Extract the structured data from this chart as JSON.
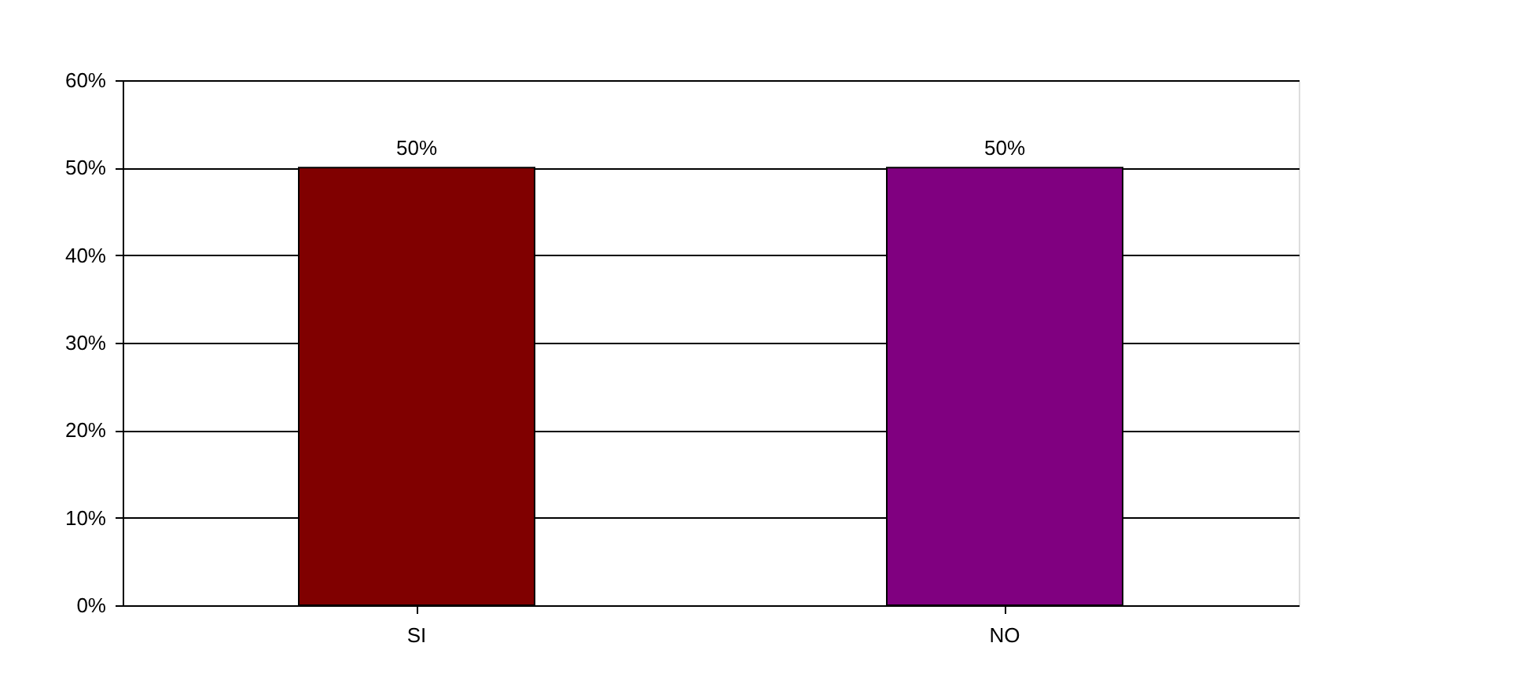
{
  "chart_data": {
    "type": "bar",
    "categories": [
      "SI",
      "NO"
    ],
    "values": [
      50,
      50
    ],
    "colors": [
      "#800000",
      "#800080"
    ],
    "value_labels": [
      "50%",
      "50%"
    ],
    "ylim": [
      0,
      60
    ],
    "yticks": [
      {
        "value": 0,
        "label": "0%"
      },
      {
        "value": 10,
        "label": "10%"
      },
      {
        "value": 20,
        "label": "20%"
      },
      {
        "value": 30,
        "label": "30%"
      },
      {
        "value": 40,
        "label": "40%"
      },
      {
        "value": 50,
        "label": "50%"
      },
      {
        "value": 60,
        "label": "60%"
      }
    ],
    "grid": "y"
  }
}
